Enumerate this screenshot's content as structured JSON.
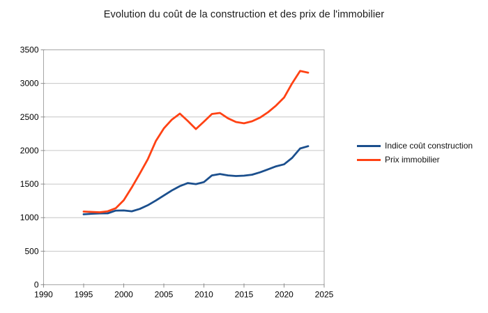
{
  "title": "Evolution du coût de la construction et des prix de l'immobilier",
  "colors": {
    "series_construction": "#1b4f8d",
    "series_immobilier": "#ff4214",
    "gridline": "#c6c6c6",
    "plot_border": "#a6a6a6",
    "tick": "#8f8f8f",
    "axis_text": "#000000",
    "background": "#ffffff"
  },
  "chart_data": {
    "type": "line",
    "title": "Evolution du coût de la construction et des prix de l'immobilier",
    "xlabel": "",
    "ylabel": "",
    "xlim": [
      1990,
      2025
    ],
    "ylim": [
      0,
      3500
    ],
    "x_ticks": [
      1990,
      1995,
      2000,
      2005,
      2010,
      2015,
      2020,
      2025
    ],
    "y_ticks": [
      0,
      500,
      1000,
      1500,
      2000,
      2500,
      3000,
      3500
    ],
    "grid": "horizontal",
    "legend_position": "right",
    "x": [
      1995,
      1996,
      1997,
      1998,
      1999,
      2000,
      2001,
      2002,
      2003,
      2004,
      2005,
      2006,
      2007,
      2008,
      2009,
      2010,
      2011,
      2012,
      2013,
      2014,
      2015,
      2016,
      2017,
      2018,
      2019,
      2020,
      2021,
      2022,
      2023
    ],
    "series": [
      {
        "name": "Indice coût construction",
        "color": "#1b4f8d",
        "values": [
          1050,
          1058,
          1063,
          1065,
          1105,
          1107,
          1095,
          1130,
          1185,
          1255,
          1330,
          1405,
          1470,
          1515,
          1500,
          1530,
          1630,
          1650,
          1630,
          1620,
          1625,
          1640,
          1675,
          1720,
          1765,
          1795,
          1890,
          2030,
          2065
        ]
      },
      {
        "name": "Prix immobilier",
        "color": "#ff4214",
        "values": [
          1090,
          1085,
          1080,
          1095,
          1140,
          1260,
          1450,
          1655,
          1870,
          2140,
          2330,
          2460,
          2550,
          2440,
          2320,
          2430,
          2545,
          2560,
          2480,
          2425,
          2405,
          2435,
          2490,
          2570,
          2670,
          2790,
          3000,
          3185,
          3160
        ]
      }
    ]
  }
}
